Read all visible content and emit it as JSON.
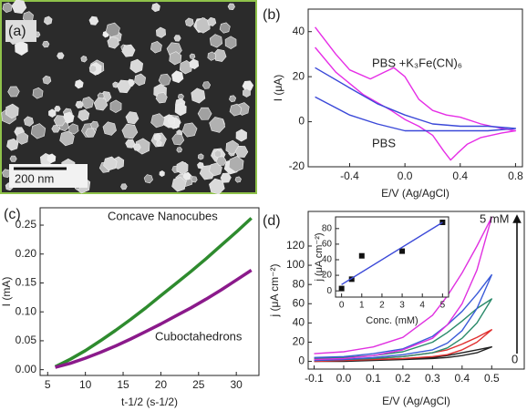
{
  "chart_data": [
    {
      "type": "image",
      "label": "(a)",
      "scale_bar": "200 nm"
    },
    {
      "type": "line",
      "label": "(b)",
      "x_label": "E/V (Ag/AgCl)",
      "y_label": "I (μA)",
      "annotations": [
        "PBS +K₃Fe(CN)₆",
        "PBS"
      ],
      "xlim": [
        -0.7,
        0.85
      ],
      "xticks": [
        -0.4,
        {
          "value": 0,
          "label": "0.0"
        },
        0.4,
        0.8
      ],
      "ylim": [
        -20,
        50
      ],
      "yticks": [
        -20,
        0,
        20,
        40
      ],
      "series": [
        {
          "color": "#e62ee6",
          "x": [
            -0.65,
            -0.5,
            -0.4,
            -0.25,
            -0.15,
            -0.08,
            0,
            0.1,
            0.2,
            0.3,
            0.4,
            0.55,
            0.7,
            0.8,
            0.7,
            0.55,
            0.45,
            0.38,
            0.33,
            0.28,
            0.2,
            0.1,
            0,
            -0.1,
            -0.3,
            -0.5,
            -0.65
          ],
          "values": [
            42,
            30,
            23,
            19,
            22,
            24,
            20,
            10,
            5,
            3,
            2,
            -1,
            -3,
            -4,
            -5,
            -7,
            -10,
            -14,
            -17,
            -13,
            -6,
            -2,
            1,
            5,
            12,
            22,
            33
          ]
        },
        {
          "color": "#3a48d8",
          "x": [
            -0.65,
            -0.4,
            -0.2,
            0,
            0.2,
            0.4,
            0.6,
            0.8,
            0.6,
            0.4,
            0.2,
            0,
            -0.2,
            -0.4,
            -0.65
          ],
          "values": [
            24,
            15,
            8,
            3,
            -1,
            -2,
            -2,
            -3,
            -4,
            -4,
            -4,
            -4,
            -1,
            3,
            11
          ]
        }
      ]
    },
    {
      "type": "line",
      "label": "(c)",
      "x_label": "t-1/2 (s-1/2)",
      "y_label": "I (mA)",
      "annotations": [
        "Concave Nanocubes",
        "Cuboctahedrons"
      ],
      "xlim": [
        4,
        33
      ],
      "xticks": [
        5,
        10,
        15,
        20,
        25,
        30
      ],
      "ylim": [
        -0.01,
        0.28
      ],
      "yticks": [
        {
          "value": 0,
          "label": "0.00"
        },
        0.05,
        {
          "value": 0.1,
          "label": "0.10"
        },
        0.15,
        {
          "value": 0.2,
          "label": "0.20"
        },
        0.25
      ],
      "x": [
        6,
        8,
        10,
        12,
        14,
        16,
        18,
        20,
        22,
        24,
        26,
        28,
        30,
        32
      ],
      "series": [
        {
          "color": "#2e8b2e",
          "values": [
            0.005,
            0.018,
            0.033,
            0.05,
            0.068,
            0.087,
            0.107,
            0.128,
            0.149,
            0.17,
            0.192,
            0.215,
            0.238,
            0.262
          ]
        },
        {
          "color": "#8b1a8b",
          "values": [
            0.004,
            0.011,
            0.02,
            0.03,
            0.041,
            0.053,
            0.066,
            0.079,
            0.093,
            0.107,
            0.122,
            0.138,
            0.155,
            0.172
          ]
        }
      ]
    },
    {
      "type": "line",
      "label": "(d)",
      "x_label": "E/V (Ag/AgCl)",
      "y_label": "j (μA cm⁻²)",
      "annotations": [
        "5 mM",
        "0"
      ],
      "xlim": [
        -0.12,
        0.61
      ],
      "xticks": [
        -0.1,
        {
          "value": 0,
          "label": "0.0"
        },
        0.1,
        0.2,
        0.3,
        0.4,
        0.5
      ],
      "ylim": [
        -8,
        156
      ],
      "yticks": [
        0,
        20,
        40,
        60,
        80,
        100,
        120
      ],
      "x": [
        -0.1,
        0,
        0.1,
        0.2,
        0.3,
        0.35,
        0.4,
        0.45,
        0.5,
        0.45,
        0.4,
        0.35,
        0.3,
        0.2,
        0.1,
        0,
        -0.1
      ],
      "series": [
        {
          "color": "#222222",
          "values": [
            0,
            0,
            1,
            2,
            3,
            4,
            6,
            9,
            15,
            12,
            9,
            6,
            4,
            2,
            1,
            0,
            0
          ]
        },
        {
          "color": "#e03030",
          "values": [
            0,
            1,
            2,
            3,
            5,
            7,
            12,
            20,
            33,
            25,
            18,
            12,
            9,
            5,
            3,
            2,
            1
          ]
        },
        {
          "color": "#2a8a6a",
          "values": [
            1,
            2,
            3,
            5,
            9,
            14,
            24,
            40,
            65,
            55,
            42,
            30,
            20,
            10,
            6,
            4,
            3
          ]
        },
        {
          "color": "#3a5ad8",
          "values": [
            1,
            2,
            4,
            7,
            12,
            19,
            32,
            55,
            90,
            70,
            52,
            38,
            26,
            13,
            8,
            5,
            4
          ]
        },
        {
          "color": "#e030e0",
          "values": [
            2,
            3,
            6,
            12,
            24,
            38,
            60,
            95,
            150,
            120,
            92,
            68,
            48,
            25,
            15,
            10,
            8
          ]
        }
      ]
    },
    {
      "type": "scatter",
      "x_label": "Conc. (mM)",
      "y_label": "j (μA cm⁻²)",
      "xlim": [
        -0.3,
        5.3
      ],
      "xticks": [
        0,
        1,
        2,
        3,
        4,
        5
      ],
      "ylim": [
        -8,
        95
      ],
      "yticks": [
        0,
        20,
        40,
        60,
        80
      ],
      "series": [
        {
          "color": "#111111",
          "marker": "square",
          "x": [
            0,
            0.5,
            1,
            3,
            5
          ],
          "values": [
            3,
            15,
            45,
            51,
            88
          ]
        },
        {
          "color": "#3a48d8",
          "marker": "line",
          "x": [
            0,
            5
          ],
          "values": [
            8,
            88
          ]
        }
      ]
    }
  ]
}
